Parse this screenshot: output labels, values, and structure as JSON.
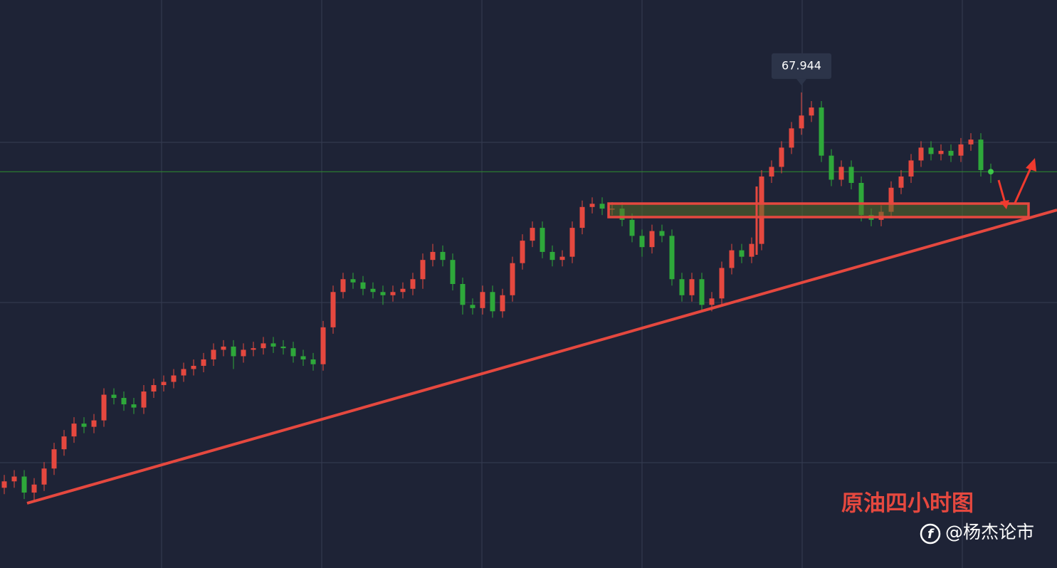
{
  "chart_data": {
    "type": "candlestick",
    "ylim": [
      64.98,
      68.52
    ],
    "up_color": "#e5483f",
    "down_color": "#2ea83a",
    "price_line_color": "#2f8f2f",
    "open": [
      65.48,
      65.52,
      65.55,
      65.45,
      65.5,
      65.6,
      65.72,
      65.8,
      65.88,
      65.86,
      65.9,
      66.06,
      66.04,
      66.0,
      65.98,
      66.08,
      66.12,
      66.14,
      66.18,
      66.22,
      66.24,
      66.28,
      66.34,
      66.36,
      66.3,
      66.34,
      66.35,
      66.38,
      66.36,
      66.35,
      66.3,
      66.28,
      66.25,
      66.48,
      66.7,
      66.78,
      66.76,
      66.72,
      66.7,
      66.68,
      66.7,
      66.72,
      66.78,
      66.9,
      66.95,
      66.9,
      66.75,
      66.62,
      66.6,
      66.7,
      66.58,
      66.68,
      66.88,
      67.02,
      67.1,
      66.95,
      66.9,
      66.92,
      67.1,
      67.23,
      67.25,
      67.22,
      67.22,
      67.15,
      67.05,
      66.98,
      67.08,
      67.05,
      66.78,
      66.68,
      66.78,
      66.62,
      66.66,
      66.85,
      66.96,
      66.92,
      67.0,
      67.42,
      67.48,
      67.6,
      67.72,
      67.8,
      67.85,
      67.55,
      67.4,
      67.48,
      67.38,
      67.18,
      67.15,
      67.2,
      67.35,
      67.42,
      67.52,
      67.6,
      67.56,
      67.58,
      67.55,
      67.62,
      67.65,
      67.46
    ],
    "high": [
      65.56,
      65.59,
      65.59,
      65.54,
      65.64,
      65.76,
      65.84,
      65.92,
      65.92,
      65.94,
      66.1,
      66.1,
      66.08,
      66.04,
      66.12,
      66.16,
      66.18,
      66.22,
      66.26,
      66.28,
      66.32,
      66.38,
      66.4,
      66.4,
      66.38,
      66.39,
      66.42,
      66.42,
      66.4,
      66.39,
      66.34,
      66.32,
      66.52,
      66.74,
      66.82,
      66.82,
      66.8,
      66.76,
      66.74,
      66.74,
      66.76,
      66.82,
      66.94,
      67.0,
      66.99,
      66.94,
      66.79,
      66.66,
      66.74,
      66.74,
      66.72,
      66.92,
      67.06,
      67.14,
      67.14,
      66.99,
      66.96,
      67.14,
      67.27,
      67.29,
      67.29,
      67.26,
      67.26,
      67.19,
      67.09,
      67.12,
      67.12,
      67.09,
      66.82,
      66.82,
      66.82,
      66.7,
      66.89,
      67.0,
      67.0,
      67.04,
      67.46,
      67.52,
      67.64,
      67.76,
      67.944,
      67.89,
      67.89,
      67.59,
      67.52,
      67.52,
      67.42,
      67.22,
      67.24,
      67.39,
      67.46,
      67.56,
      67.64,
      67.64,
      67.62,
      67.62,
      67.66,
      67.69,
      67.69,
      67.5
    ],
    "low": [
      65.44,
      65.48,
      65.41,
      65.4,
      65.46,
      65.56,
      65.68,
      65.76,
      65.82,
      65.82,
      65.86,
      66.0,
      65.96,
      65.94,
      65.94,
      66.04,
      66.08,
      66.1,
      66.14,
      66.18,
      66.2,
      66.24,
      66.3,
      66.22,
      66.26,
      66.3,
      66.31,
      66.32,
      66.31,
      66.26,
      66.24,
      66.21,
      66.21,
      66.44,
      66.66,
      66.72,
      66.68,
      66.66,
      66.62,
      66.64,
      66.66,
      66.68,
      66.72,
      66.86,
      66.86,
      66.71,
      66.56,
      66.56,
      66.56,
      66.54,
      66.54,
      66.64,
      66.84,
      66.98,
      66.91,
      66.86,
      66.86,
      66.88,
      67.06,
      67.19,
      67.18,
      67.18,
      67.11,
      67.01,
      66.92,
      66.94,
      67.01,
      66.74,
      66.64,
      66.64,
      66.58,
      66.58,
      66.62,
      66.81,
      66.88,
      66.88,
      66.96,
      67.38,
      67.44,
      67.56,
      67.68,
      67.76,
      67.51,
      67.36,
      67.36,
      67.34,
      67.14,
      67.11,
      67.11,
      67.16,
      67.31,
      67.38,
      67.48,
      67.52,
      67.52,
      67.51,
      67.51,
      67.58,
      67.42,
      67.38
    ],
    "close": [
      65.52,
      65.55,
      65.45,
      65.5,
      65.6,
      65.72,
      65.8,
      65.88,
      65.86,
      65.9,
      66.06,
      66.04,
      66.0,
      65.98,
      66.08,
      66.12,
      66.14,
      66.18,
      66.22,
      66.24,
      66.28,
      66.34,
      66.36,
      66.3,
      66.34,
      66.35,
      66.38,
      66.36,
      66.35,
      66.3,
      66.28,
      66.25,
      66.48,
      66.7,
      66.78,
      66.76,
      66.72,
      66.7,
      66.68,
      66.7,
      66.72,
      66.78,
      66.9,
      66.95,
      66.9,
      66.75,
      66.62,
      66.6,
      66.7,
      66.58,
      66.68,
      66.88,
      67.02,
      67.1,
      66.95,
      66.9,
      66.92,
      67.1,
      67.23,
      67.25,
      67.22,
      67.22,
      67.15,
      67.05,
      66.98,
      67.08,
      67.05,
      66.78,
      66.68,
      66.78,
      66.62,
      66.66,
      66.85,
      66.96,
      66.92,
      67.0,
      67.42,
      67.48,
      67.6,
      67.72,
      67.8,
      67.85,
      67.55,
      67.4,
      67.48,
      67.38,
      67.18,
      67.15,
      67.2,
      67.35,
      67.42,
      67.52,
      67.6,
      67.56,
      67.58,
      67.55,
      67.62,
      67.65,
      67.46,
      67.45
    ],
    "tooltip_index": 80,
    "annotation": "原油四小时图",
    "watermark": "@杨杰论市"
  }
}
